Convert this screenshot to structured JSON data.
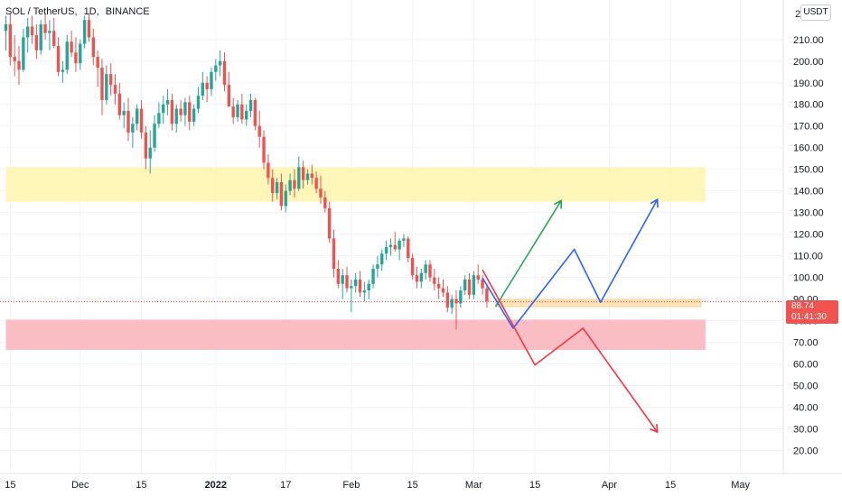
{
  "header": {
    "symbol": "SOL / TetherUS",
    "interval": "1D",
    "exchange": "BINANCE",
    "sep1": ",",
    "sep2": ","
  },
  "currency_button": "USDT",
  "last_price": {
    "value": "88.74",
    "countdown": "01:41:30"
  },
  "colors": {
    "up": "#26a69a",
    "down": "#ef5350",
    "resistance_zone": "#fff5b1",
    "support_zone": "#f9b9c0",
    "small_zone": "#ffe1b3",
    "path_green": "#26a657",
    "path_blue": "#2962ff",
    "path_red": "#f23645",
    "last_price_line": "#f23645"
  },
  "chart_data": {
    "type": "candlestick",
    "symbol": "SOL / TetherUS",
    "interval": "1D",
    "exchange": "BINANCE",
    "y_axis": {
      "side": "right",
      "ylim": [
        15,
        222
      ],
      "ticks": [
        20,
        30,
        40,
        50,
        60,
        70,
        80,
        90,
        100,
        110,
        120,
        130,
        140,
        150,
        160,
        170,
        180,
        190,
        200,
        210
      ],
      "tick_labels": [
        "20.00",
        "30.00",
        "40.00",
        "50.00",
        "60.00",
        "70.00",
        "80.00",
        "90.00",
        "100.00",
        "110.00",
        "120.00",
        "130.00",
        "140.00",
        "150.00",
        "160.00",
        "170.00",
        "180.00",
        "190.00",
        "200.00",
        "210.00"
      ],
      "top_partial_label": "2"
    },
    "x_axis": {
      "type": "date",
      "range": [
        "2021-11-14",
        "2022-05-08"
      ],
      "ticks": [
        {
          "date": "2021-11-15",
          "label": "15"
        },
        {
          "date": "2021-12-01",
          "label": "Dec"
        },
        {
          "date": "2021-12-15",
          "label": "15"
        },
        {
          "date": "2022-01-01",
          "label": "2022"
        },
        {
          "date": "2022-01-17",
          "label": "17"
        },
        {
          "date": "2022-02-01",
          "label": "Feb"
        },
        {
          "date": "2022-02-15",
          "label": "15"
        },
        {
          "date": "2022-03-01",
          "label": "Mar"
        },
        {
          "date": "2022-03-15",
          "label": "15"
        },
        {
          "date": "2022-04-01",
          "label": "Apr"
        },
        {
          "date": "2022-04-15",
          "label": "15"
        },
        {
          "date": "2022-05-01",
          "label": "May"
        }
      ]
    },
    "candles": {
      "start_date": "2021-11-14",
      "interval_days": 1,
      "ohlc": [
        [
          214,
          221,
          205,
          217
        ],
        [
          217,
          222,
          198,
          202
        ],
        [
          202,
          212,
          193,
          200
        ],
        [
          200,
          207,
          189,
          196
        ],
        [
          196,
          215,
          195,
          211
        ],
        [
          211,
          220,
          204,
          216
        ],
        [
          216,
          221,
          208,
          212
        ],
        [
          212,
          217,
          201,
          205
        ],
        [
          205,
          219,
          203,
          217
        ],
        [
          217,
          222,
          210,
          213
        ],
        [
          213,
          219,
          205,
          214
        ],
        [
          214,
          220,
          206,
          207
        ],
        [
          207,
          211,
          193,
          195
        ],
        [
          195,
          200,
          190,
          196
        ],
        [
          196,
          212,
          194,
          209
        ],
        [
          209,
          214,
          202,
          204
        ],
        [
          204,
          211,
          195,
          199
        ],
        [
          199,
          210,
          196,
          208
        ],
        [
          208,
          221,
          206,
          219
        ],
        [
          219,
          222,
          209,
          211
        ],
        [
          211,
          215,
          198,
          202
        ],
        [
          202,
          205,
          188,
          197
        ],
        [
          197,
          201,
          175,
          182
        ],
        [
          182,
          198,
          180,
          194
        ],
        [
          194,
          199,
          184,
          189
        ],
        [
          189,
          194,
          180,
          185
        ],
        [
          185,
          190,
          173,
          175
        ],
        [
          175,
          181,
          169,
          177
        ],
        [
          177,
          183,
          163,
          167
        ],
        [
          167,
          174,
          160,
          171
        ],
        [
          171,
          180,
          168,
          178
        ],
        [
          178,
          182,
          164,
          167
        ],
        [
          167,
          170,
          150,
          155
        ],
        [
          155,
          168,
          148,
          160
        ],
        [
          160,
          175,
          158,
          171
        ],
        [
          171,
          181,
          169,
          176
        ],
        [
          176,
          184,
          171,
          180
        ],
        [
          180,
          187,
          175,
          182
        ],
        [
          182,
          185,
          168,
          171
        ],
        [
          171,
          180,
          167,
          178
        ],
        [
          178,
          182,
          172,
          175
        ],
        [
          175,
          183,
          170,
          181
        ],
        [
          181,
          184,
          168,
          172
        ],
        [
          172,
          180,
          170,
          178
        ],
        [
          178,
          188,
          176,
          184
        ],
        [
          184,
          195,
          182,
          190
        ],
        [
          190,
          193,
          181,
          187
        ],
        [
          187,
          197,
          184,
          195
        ],
        [
          195,
          201,
          191,
          198
        ],
        [
          198,
          205,
          193,
          200
        ],
        [
          200,
          204,
          186,
          189
        ],
        [
          189,
          195,
          181,
          179
        ],
        [
          179,
          183,
          171,
          174
        ],
        [
          174,
          182,
          172,
          180
        ],
        [
          180,
          185,
          171,
          173
        ],
        [
          173,
          180,
          170,
          177
        ],
        [
          177,
          185,
          174,
          182
        ],
        [
          182,
          183,
          168,
          170
        ],
        [
          170,
          177,
          160,
          165
        ],
        [
          165,
          168,
          150,
          153
        ],
        [
          153,
          157,
          143,
          146
        ],
        [
          146,
          150,
          135,
          139
        ],
        [
          139,
          146,
          136,
          144
        ],
        [
          144,
          148,
          131,
          133
        ],
        [
          133,
          143,
          130,
          140
        ],
        [
          140,
          148,
          138,
          145
        ],
        [
          145,
          150,
          137,
          141
        ],
        [
          141,
          156,
          140,
          151
        ],
        [
          151,
          154,
          141,
          145
        ],
        [
          145,
          150,
          143,
          148
        ],
        [
          148,
          152,
          143,
          146
        ],
        [
          146,
          149,
          139,
          141
        ],
        [
          141,
          147,
          134,
          137
        ],
        [
          137,
          140,
          130,
          132
        ],
        [
          132,
          135,
          116,
          118
        ],
        [
          118,
          122,
          100,
          104
        ],
        [
          104,
          108,
          95,
          97
        ],
        [
          97,
          104,
          90,
          101
        ],
        [
          101,
          105,
          93,
          95
        ],
        [
          95,
          99,
          84,
          96
        ],
        [
          96,
          102,
          93,
          99
        ],
        [
          99,
          103,
          91,
          93
        ],
        [
          93,
          98,
          89,
          94
        ],
        [
          94,
          99,
          90,
          97
        ],
        [
          97,
          106,
          95,
          104
        ],
        [
          104,
          110,
          100,
          106
        ],
        [
          106,
          113,
          103,
          111
        ],
        [
          111,
          117,
          108,
          114
        ],
        [
          114,
          118,
          110,
          115
        ],
        [
          115,
          121,
          112,
          113
        ],
        [
          113,
          118,
          108,
          117
        ],
        [
          117,
          120,
          114,
          118
        ],
        [
          118,
          119,
          107,
          109
        ],
        [
          109,
          111,
          99,
          101
        ],
        [
          101,
          105,
          95,
          98
        ],
        [
          98,
          104,
          95,
          102
        ],
        [
          102,
          108,
          99,
          106
        ],
        [
          106,
          108,
          98,
          100
        ],
        [
          100,
          104,
          94,
          97
        ],
        [
          97,
          100,
          90,
          95
        ],
        [
          95,
          99,
          91,
          93
        ],
        [
          93,
          96,
          84,
          86
        ],
        [
          86,
          92,
          83,
          90
        ],
        [
          90,
          94,
          76,
          88
        ],
        [
          88,
          96,
          86,
          94
        ],
        [
          94,
          101,
          92,
          99
        ],
        [
          99,
          102,
          90,
          92
        ],
        [
          92,
          103,
          90,
          101
        ],
        [
          101,
          106,
          97,
          99
        ],
        [
          99,
          101,
          92,
          95
        ],
        [
          95,
          97,
          86,
          89
        ]
      ]
    },
    "zones": [
      {
        "name": "resistance",
        "from_date": "2021-11-14",
        "to_date": "2022-04-23",
        "low": 135,
        "high": 151
      },
      {
        "name": "support",
        "from_date": "2021-11-14",
        "to_date": "2022-04-23",
        "low": 66.5,
        "high": 80.5
      },
      {
        "name": "entry",
        "from_date": "2022-03-06",
        "to_date": "2022-04-22",
        "low": 86.5,
        "high": 89.8
      }
    ],
    "projections": [
      {
        "name": "green",
        "points": [
          [
            "2022-03-06",
            86.5
          ],
          [
            "2022-03-21",
            135.5
          ]
        ]
      },
      {
        "name": "blue",
        "points": [
          [
            "2022-03-03",
            99.8
          ],
          [
            "2022-03-10",
            76.5
          ],
          [
            "2022-03-24",
            113
          ],
          [
            "2022-03-30",
            88.5
          ],
          [
            "2022-04-12",
            136
          ]
        ]
      },
      {
        "name": "red",
        "points": [
          [
            "2022-03-03",
            103.5
          ],
          [
            "2022-03-15",
            59.5
          ],
          [
            "2022-03-26",
            76.5
          ],
          [
            "2022-04-12",
            28.5
          ]
        ]
      }
    ],
    "last_price": 88.74,
    "grid": true,
    "legend": "none"
  }
}
